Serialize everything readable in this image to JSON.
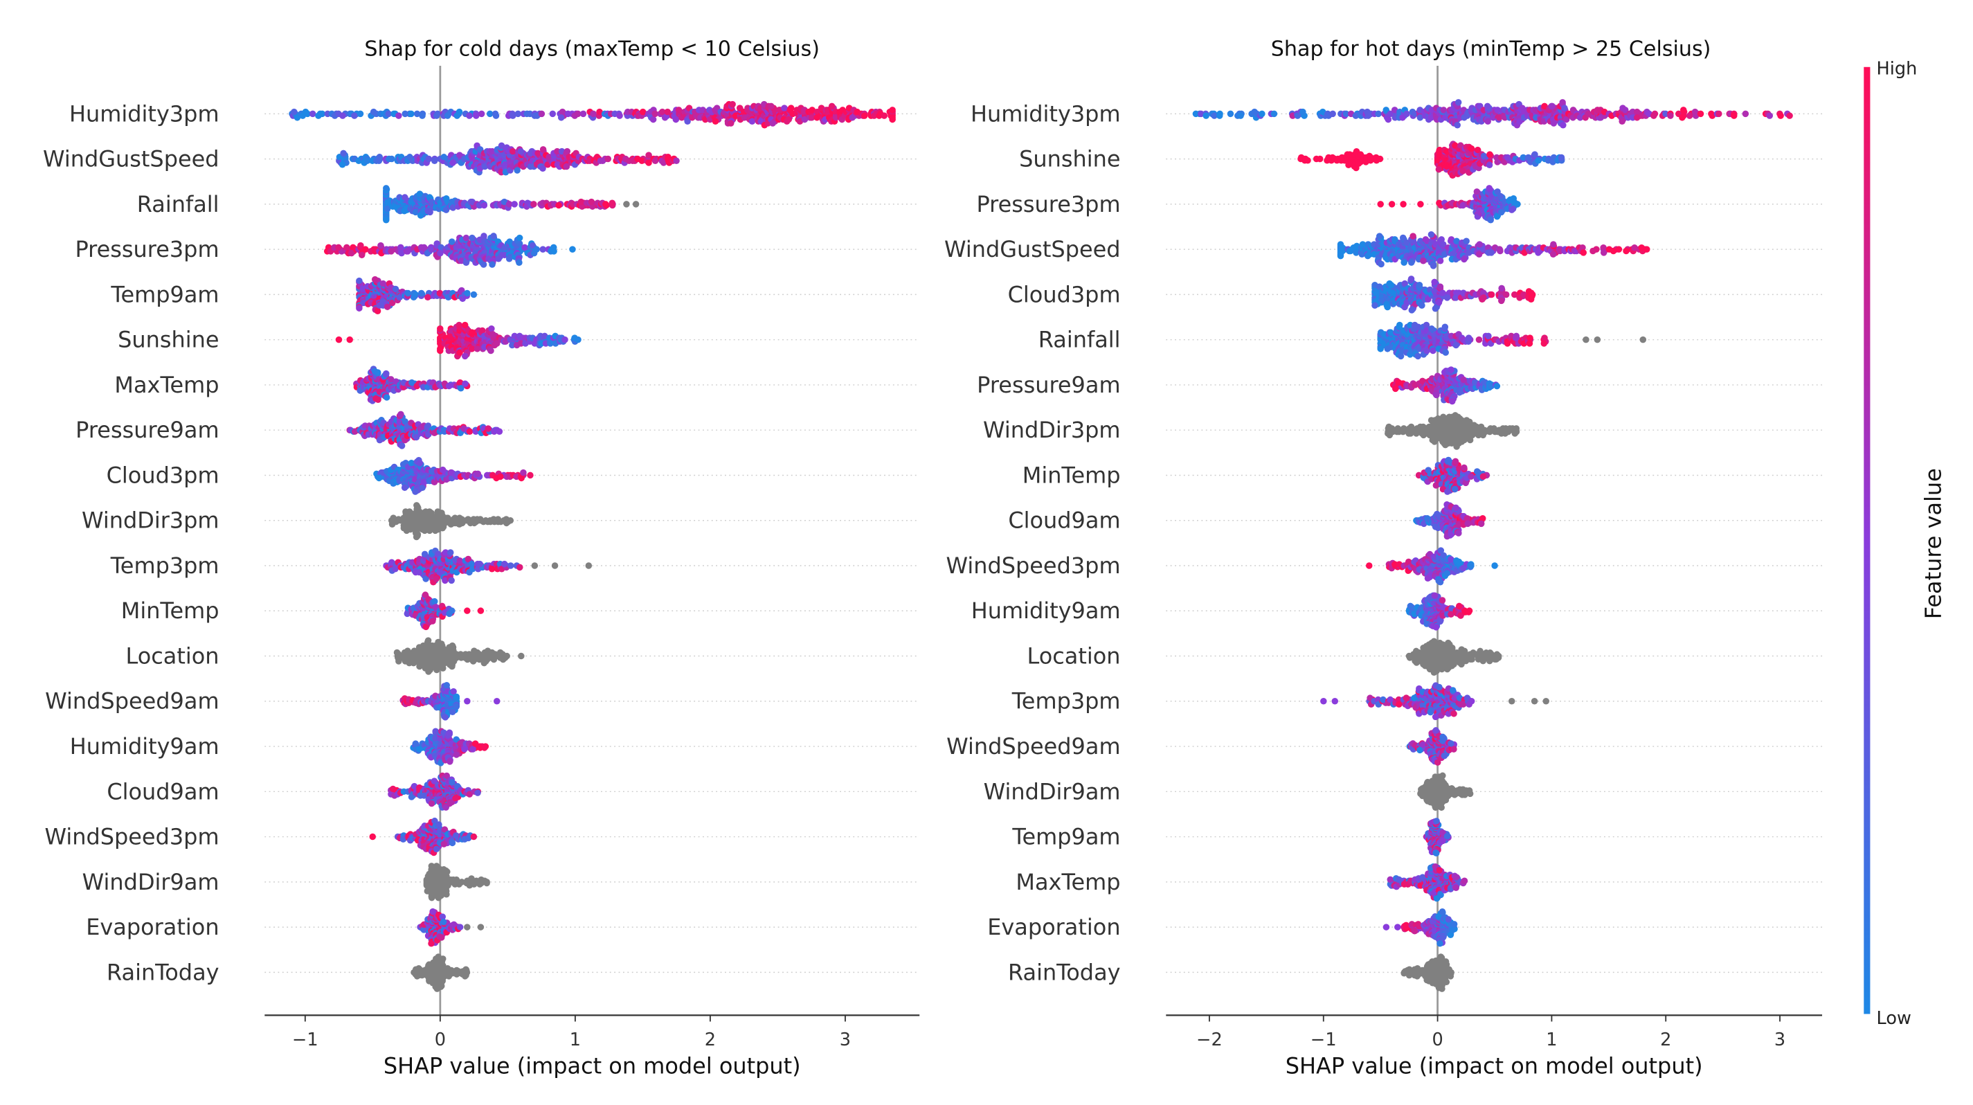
{
  "colorbar": {
    "label": "Feature value",
    "high": "High",
    "low": "Low",
    "colors": {
      "high": "#ff0d57",
      "mid": "#8a3cdc",
      "low": "#1e88e5",
      "missing": "#808080"
    }
  },
  "chart_data": [
    {
      "type": "scatter",
      "subtype": "beeswarm",
      "title": "Shap for cold days (maxTemp < 10 Celsius)",
      "xlabel": "SHAP value (impact on model output)",
      "xlim": [
        -1.3,
        3.55
      ],
      "xticks": [
        -1,
        0,
        1,
        2,
        3
      ],
      "xtick_labels": [
        "−1",
        "0",
        "1",
        "2",
        "3"
      ],
      "features": [
        {
          "name": "Humidity3pm",
          "min": -1.1,
          "max": 3.35,
          "peak": 2.4,
          "color": "pos",
          "outliers": []
        },
        {
          "name": "WindGustSpeed",
          "min": -0.75,
          "max": 1.75,
          "peak": 0.5,
          "color": "pos",
          "outliers": []
        },
        {
          "name": "Rainfall",
          "min": -0.4,
          "max": 1.3,
          "peak": -0.2,
          "color": "pos",
          "outliers": [
            [
              1.38,
              "gray"
            ],
            [
              1.45,
              "gray"
            ]
          ]
        },
        {
          "name": "Pressure3pm",
          "min": -0.85,
          "max": 0.85,
          "peak": 0.3,
          "color": "neg",
          "outliers": [
            [
              0.98,
              "low"
            ]
          ]
        },
        {
          "name": "Temp9am",
          "min": -0.6,
          "max": 0.25,
          "peak": -0.45,
          "color": "mixed",
          "outliers": []
        },
        {
          "name": "Sunshine",
          "min": 0.0,
          "max": 1.05,
          "peak": 0.2,
          "color": "neg",
          "outliers": [
            [
              -0.75,
              "high"
            ],
            [
              -0.67,
              "high"
            ]
          ]
        },
        {
          "name": "MaxTemp",
          "min": -0.62,
          "max": 0.2,
          "peak": -0.45,
          "color": "mixed",
          "outliers": []
        },
        {
          "name": "Pressure9am",
          "min": -0.67,
          "max": 0.45,
          "peak": -0.3,
          "color": "mixed",
          "outliers": []
        },
        {
          "name": "Cloud3pm",
          "min": -0.48,
          "max": 0.67,
          "peak": -0.2,
          "color": "pos",
          "outliers": []
        },
        {
          "name": "WindDir3pm",
          "min": -0.37,
          "max": 0.55,
          "peak": -0.1,
          "color": "gray",
          "outliers": []
        },
        {
          "name": "Temp3pm",
          "min": -0.4,
          "max": 0.6,
          "peak": 0.0,
          "color": "mixed",
          "outliers": [
            [
              0.7,
              "gray"
            ],
            [
              0.85,
              "gray"
            ],
            [
              1.1,
              "gray"
            ]
          ]
        },
        {
          "name": "MinTemp",
          "min": -0.25,
          "max": 0.1,
          "peak": -0.1,
          "color": "mixed",
          "outliers": [
            [
              0.2,
              "high"
            ],
            [
              0.3,
              "high"
            ]
          ]
        },
        {
          "name": "Location",
          "min": -0.32,
          "max": 0.5,
          "peak": -0.05,
          "color": "gray",
          "outliers": [
            [
              0.6,
              "gray"
            ]
          ]
        },
        {
          "name": "WindSpeed9am",
          "min": -0.28,
          "max": 0.12,
          "peak": 0.05,
          "color": "neg",
          "outliers": [
            [
              0.2,
              "mid"
            ],
            [
              0.42,
              "mid"
            ]
          ]
        },
        {
          "name": "Humidity9am",
          "min": -0.2,
          "max": 0.35,
          "peak": 0.02,
          "color": "pos",
          "outliers": []
        },
        {
          "name": "Cloud9am",
          "min": -0.38,
          "max": 0.28,
          "peak": 0.0,
          "color": "mixed",
          "outliers": []
        },
        {
          "name": "WindSpeed3pm",
          "min": -0.32,
          "max": 0.25,
          "peak": -0.05,
          "color": "mixed",
          "outliers": [
            [
              -0.5,
              "high"
            ]
          ]
        },
        {
          "name": "WindDir9am",
          "min": -0.1,
          "max": 0.35,
          "peak": -0.03,
          "color": "gray",
          "outliers": []
        },
        {
          "name": "Evaporation",
          "min": -0.15,
          "max": 0.15,
          "peak": -0.03,
          "color": "mixed",
          "outliers": [
            [
              0.2,
              "gray"
            ],
            [
              0.3,
              "gray"
            ]
          ]
        },
        {
          "name": "RainToday",
          "min": -0.2,
          "max": 0.2,
          "peak": -0.02,
          "color": "gray",
          "outliers": []
        }
      ]
    },
    {
      "type": "scatter",
      "subtype": "beeswarm",
      "title": "Shap for hot days (minTemp > 25 Celsius)",
      "xlabel": "SHAP value (impact on model output)",
      "xlim": [
        -2.38,
        3.37
      ],
      "xticks": [
        -2,
        -1,
        0,
        1,
        2,
        3
      ],
      "xtick_labels": [
        "−2",
        "−1",
        "0",
        "1",
        "2",
        "3"
      ],
      "features": [
        {
          "name": "Humidity3pm",
          "min": -2.15,
          "max": 3.1,
          "peak": 0.6,
          "color": "pos",
          "outliers": []
        },
        {
          "name": "Sunshine",
          "min": 0.0,
          "max": 1.1,
          "peak": 0.2,
          "color": "neg",
          "outliers": [],
          "cluster": {
            "min": -1.2,
            "max": -0.5,
            "peak": -0.7,
            "color": "high"
          }
        },
        {
          "name": "Pressure3pm",
          "min": 0.0,
          "max": 0.7,
          "peak": 0.45,
          "color": "neg",
          "outliers": [
            [
              -0.5,
              "high"
            ],
            [
              -0.4,
              "high"
            ],
            [
              -0.3,
              "high"
            ],
            [
              -0.15,
              "high"
            ]
          ]
        },
        {
          "name": "WindGustSpeed",
          "min": -0.85,
          "max": 1.85,
          "peak": -0.25,
          "color": "pos",
          "outliers": []
        },
        {
          "name": "Cloud3pm",
          "min": -0.55,
          "max": 0.85,
          "peak": -0.3,
          "color": "pos",
          "outliers": []
        },
        {
          "name": "Rainfall",
          "min": -0.5,
          "max": 1.0,
          "peak": -0.2,
          "color": "pos",
          "outliers": [
            [
              1.3,
              "gray"
            ],
            [
              1.4,
              "gray"
            ],
            [
              1.8,
              "gray"
            ]
          ]
        },
        {
          "name": "Pressure9am",
          "min": -0.4,
          "max": 0.55,
          "peak": 0.1,
          "color": "neg",
          "outliers": []
        },
        {
          "name": "WindDir3pm",
          "min": -0.45,
          "max": 0.7,
          "peak": 0.1,
          "color": "gray",
          "outliers": []
        },
        {
          "name": "MinTemp",
          "min": -0.2,
          "max": 0.45,
          "peak": 0.1,
          "color": "mixed",
          "outliers": []
        },
        {
          "name": "Cloud9am",
          "min": -0.2,
          "max": 0.4,
          "peak": 0.1,
          "color": "pos",
          "outliers": []
        },
        {
          "name": "WindSpeed3pm",
          "min": -0.45,
          "max": 0.3,
          "peak": 0.0,
          "color": "neg",
          "outliers": [
            [
              -0.6,
              "high"
            ],
            [
              0.5,
              "low"
            ]
          ]
        },
        {
          "name": "Humidity9am",
          "min": -0.25,
          "max": 0.3,
          "peak": -0.05,
          "color": "pos",
          "outliers": []
        },
        {
          "name": "Location",
          "min": -0.25,
          "max": 0.55,
          "peak": 0.0,
          "color": "gray",
          "outliers": []
        },
        {
          "name": "Temp3pm",
          "min": -0.6,
          "max": 0.3,
          "peak": 0.0,
          "color": "mixed",
          "outliers": [
            [
              -1.0,
              "mid"
            ],
            [
              -0.9,
              "mid"
            ],
            [
              0.65,
              "gray"
            ],
            [
              0.85,
              "gray"
            ],
            [
              0.95,
              "gray"
            ]
          ]
        },
        {
          "name": "WindSpeed9am",
          "min": -0.25,
          "max": 0.15,
          "peak": 0.0,
          "color": "mixed",
          "outliers": []
        },
        {
          "name": "WindDir9am",
          "min": -0.15,
          "max": 0.3,
          "peak": 0.0,
          "color": "gray",
          "outliers": []
        },
        {
          "name": "Temp9am",
          "min": -0.1,
          "max": 0.1,
          "peak": -0.03,
          "color": "mixed",
          "outliers": []
        },
        {
          "name": "MaxTemp",
          "min": -0.45,
          "max": 0.25,
          "peak": 0.0,
          "color": "mixed",
          "outliers": []
        },
        {
          "name": "Evaporation",
          "min": -0.3,
          "max": 0.15,
          "peak": 0.0,
          "color": "neg",
          "outliers": [
            [
              -0.45,
              "mid"
            ],
            [
              -0.35,
              "mid"
            ]
          ]
        },
        {
          "name": "RainToday",
          "min": -0.3,
          "max": 0.15,
          "peak": 0.0,
          "color": "gray",
          "outliers": []
        }
      ]
    }
  ]
}
